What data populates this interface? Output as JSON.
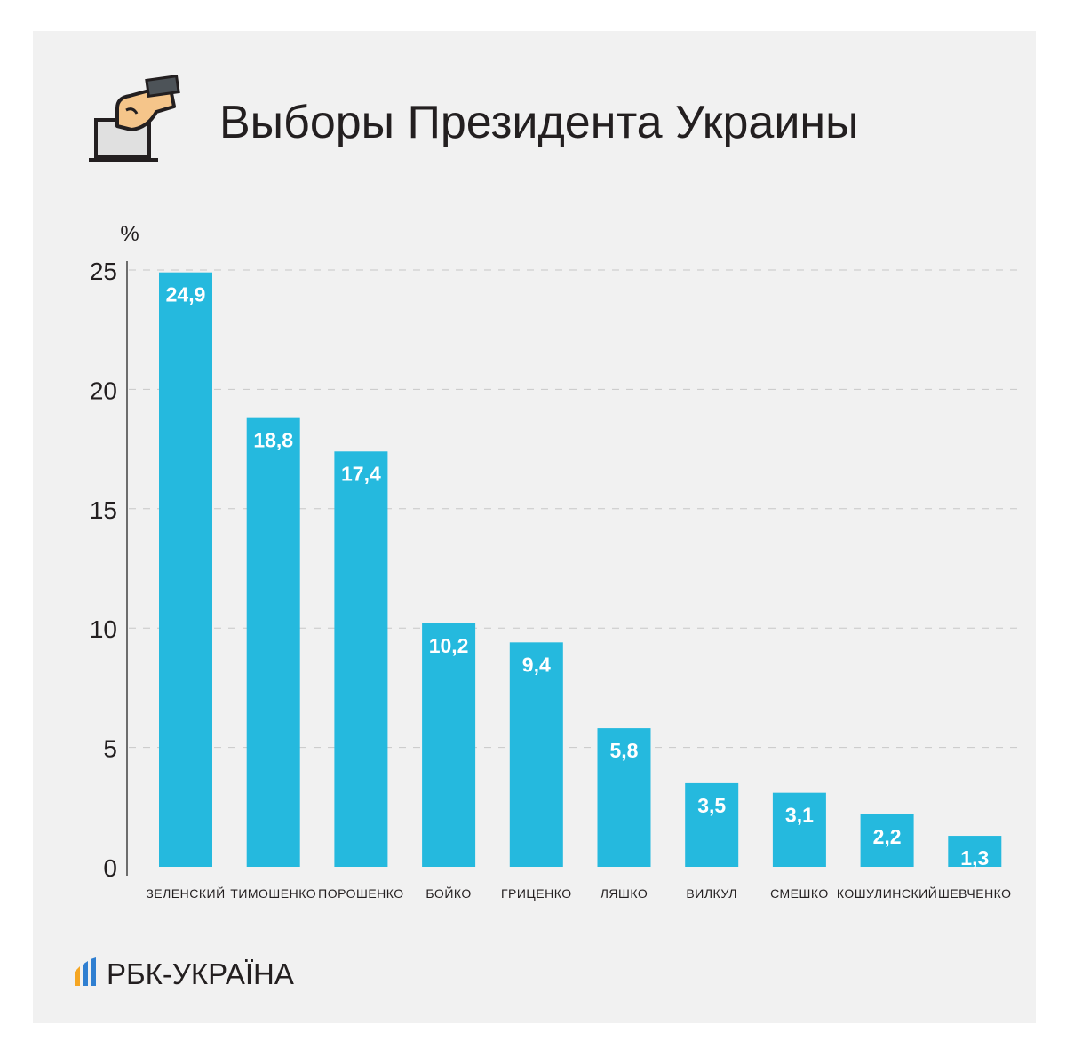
{
  "header": {
    "title": "Выборы Президента Украины"
  },
  "footer": {
    "brand": "РБК-УКРАЇНА"
  },
  "colors": {
    "bar": "#25b9de",
    "background": "#f1f1f1",
    "text": "#231f20",
    "grid": "#c8c8c8"
  },
  "icons": [
    "ballot-box-icon",
    "rbk-logo-icon"
  ],
  "chart_data": {
    "type": "bar",
    "title": "Выборы Президента Украины",
    "ylabel": "%",
    "xlabel": "",
    "ylim": [
      0,
      25
    ],
    "yticks": [
      0,
      5,
      10,
      15,
      20,
      25
    ],
    "grid": true,
    "categories": [
      "ЗЕЛЕНСКИЙ",
      "ТИМОШЕНКО",
      "ПОРОШЕНКО",
      "БОЙКО",
      "ГРИЦЕНКО",
      "ЛЯШКО",
      "ВИЛКУЛ",
      "СМЕШКО",
      "КОШУЛИНСКИЙ",
      "ШЕВЧЕНКО"
    ],
    "values": [
      24.9,
      18.8,
      17.4,
      10.2,
      9.4,
      5.8,
      3.5,
      3.1,
      2.2,
      1.3
    ],
    "data_labels": [
      "24,9",
      "18,8",
      "17,4",
      "10,2",
      "9,4",
      "5,8",
      "3,5",
      "3,1",
      "2,2",
      "1,3"
    ]
  }
}
